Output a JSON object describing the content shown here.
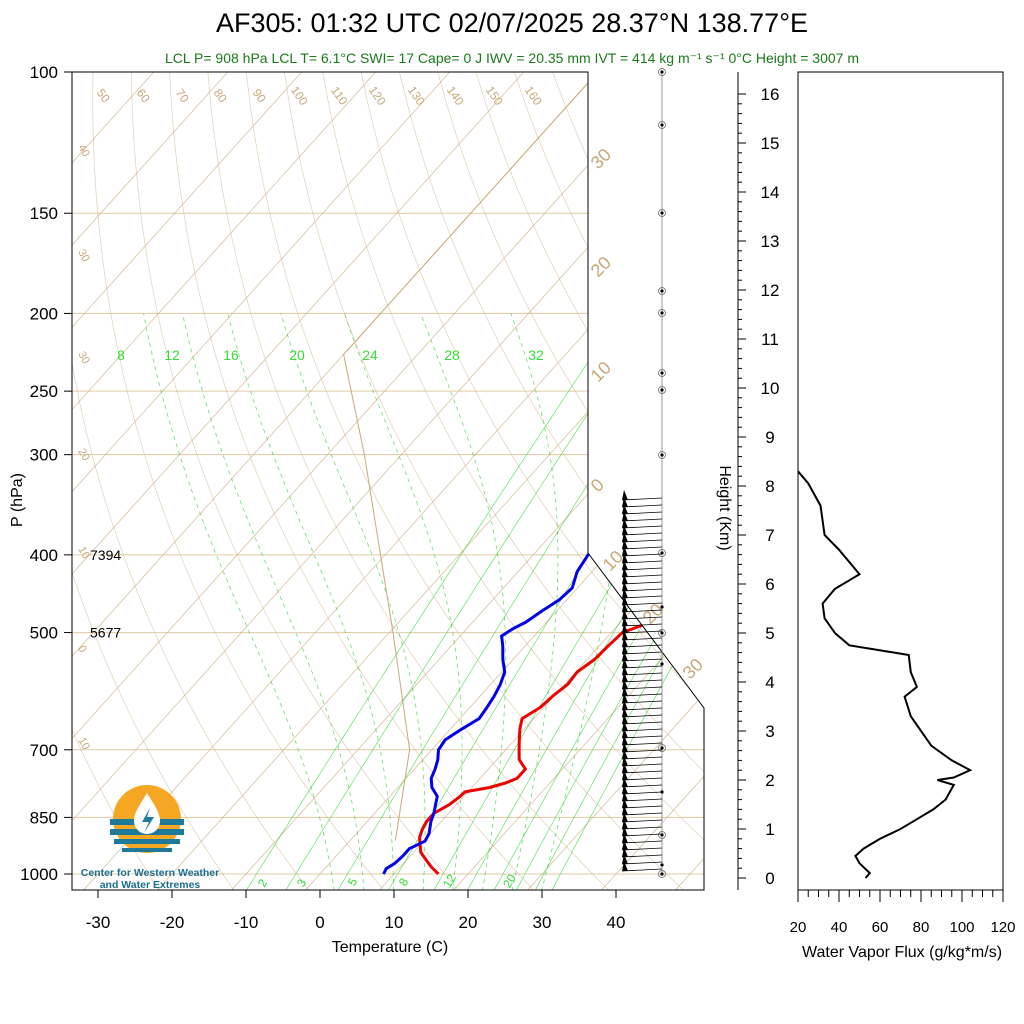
{
  "header": {
    "title": "AF305: 01:32 UTC 02/07/2025  28.37°N 138.77°E",
    "subtitle": "LCL P= 908 hPa  LCL T= 6.1°C  SWI= 17  Cape= 0 J  IWV = 20.35 mm  IVT = 414 kg m⁻¹ s⁻¹  0°C Height = 3007 m"
  },
  "logo": {
    "line1": "Center for Western Weather",
    "line2": "and Water Extremes",
    "colors": {
      "sun": "#f5a623",
      "water": "#1f7a99"
    }
  },
  "colors": {
    "temperature": "#ee0000",
    "dewpoint": "#0000ee",
    "isotherm": "#c8a878",
    "mixing_ratio": "#00cc00",
    "parcel": "#c8a878",
    "flux": "#000000",
    "subtitle": "#1a7a1a"
  },
  "chart_data": [
    {
      "type": "line",
      "subtype": "skew-T log-P sounding",
      "xlabel": "Temperature (C)",
      "ylabel": "P (hPa)",
      "x_ticks": [
        -30,
        -20,
        -10,
        0,
        10,
        20,
        30,
        40
      ],
      "y_ticks": [
        100,
        150,
        200,
        250,
        300,
        400,
        500,
        700,
        850,
        1000
      ],
      "y_scale": "log",
      "ylim": [
        1000,
        100
      ],
      "isotherm_labels": [
        -50,
        -40,
        -30,
        -20,
        -10,
        0,
        10,
        20,
        30
      ],
      "adiabat_labels": [
        50,
        60,
        70,
        80,
        90,
        100,
        110,
        120,
        130,
        140,
        150,
        160
      ],
      "mixing_ratio_labels_top": [
        8,
        12,
        16,
        20,
        24,
        28,
        32
      ],
      "mixing_ratio_labels_bottom": [
        2,
        3,
        5,
        8,
        12,
        20
      ],
      "height_annotations": [
        {
          "p": 400,
          "label": "7394"
        },
        {
          "p": 500,
          "label": "5677"
        }
      ],
      "series": [
        {
          "name": "temperature",
          "points": [
            [
              1000,
              16.0
            ],
            [
              980,
              14.2
            ],
            [
              960,
              12.6
            ],
            [
              940,
              11.0
            ],
            [
              920,
              10.0
            ],
            [
              900,
              9.0
            ],
            [
              880,
              8.4
            ],
            [
              860,
              8.0
            ],
            [
              840,
              8.0
            ],
            [
              820,
              9.0
            ],
            [
              800,
              9.5
            ],
            [
              790,
              9.6
            ],
            [
              780,
              12.4
            ],
            [
              770,
              14.0
            ],
            [
              760,
              15.0
            ],
            [
              740,
              15.0
            ],
            [
              720,
              13.0
            ],
            [
              700,
              11.8
            ],
            [
              680,
              10.6
            ],
            [
              660,
              9.4
            ],
            [
              640,
              8.4
            ],
            [
              620,
              9.5
            ],
            [
              600,
              9.8
            ],
            [
              580,
              10.4
            ],
            [
              560,
              10.2
            ],
            [
              540,
              11.0
            ],
            [
              520,
              11.2
            ],
            [
              500,
              11.5
            ],
            [
              490,
              13.2
            ],
            [
              480,
              14.0
            ],
            [
              470,
              14.8
            ],
            [
              460,
              17.0
            ],
            [
              450,
              18.0
            ],
            [
              440,
              17.0
            ],
            [
              420,
              17.0
            ],
            [
              400,
              16.0
            ],
            [
              380,
              14.5
            ],
            [
              360,
              13.6
            ],
            [
              350,
              14.0
            ],
            [
              340,
              13.5
            ]
          ]
        },
        {
          "name": "dewpoint",
          "points": [
            [
              1000,
              8.6
            ],
            [
              985,
              8.3
            ],
            [
              970,
              8.8
            ],
            [
              950,
              9.0
            ],
            [
              930,
              9.0
            ],
            [
              910,
              10.2
            ],
            [
              890,
              9.8
            ],
            [
              870,
              9.0
            ],
            [
              860,
              8.6
            ],
            [
              840,
              8.0
            ],
            [
              820,
              7.2
            ],
            [
              800,
              6.4
            ],
            [
              780,
              4.6
            ],
            [
              760,
              3.4
            ],
            [
              740,
              2.8
            ],
            [
              720,
              2.0
            ],
            [
              700,
              0.9
            ],
            [
              680,
              0.6
            ],
            [
              660,
              1.5
            ],
            [
              640,
              2.6
            ],
            [
              620,
              2.3
            ],
            [
              600,
              1.9
            ],
            [
              580,
              1.3
            ],
            [
              560,
              0.4
            ],
            [
              540,
              -1.4
            ],
            [
              520,
              -3.0
            ],
            [
              505,
              -4.4
            ],
            [
              495,
              -3.8
            ],
            [
              485,
              -2.8
            ],
            [
              470,
              -2.0
            ],
            [
              455,
              -1.0
            ],
            [
              440,
              -0.7
            ],
            [
              420,
              -2.0
            ],
            [
              400,
              -2.6
            ],
            [
              380,
              -2.8
            ],
            [
              370,
              -1.2
            ],
            [
              360,
              -1.4
            ],
            [
              350,
              -3.3
            ],
            [
              340,
              -4.5
            ]
          ]
        },
        {
          "name": "parcel",
          "points": [
            [
              908,
              6.1
            ],
            [
              700,
              -3.0
            ],
            [
              500,
              -19.5
            ],
            [
              300,
              -45.0
            ],
            [
              225,
              -60.0
            ],
            [
              100,
              -60.0
            ]
          ]
        }
      ]
    },
    {
      "type": "line",
      "subtype": "vertical profile",
      "xlabel": "Water Vapor Flux (g/kg*m/s)",
      "ylabel": "Height (Km)",
      "x_ticks": [
        20,
        40,
        60,
        80,
        100,
        120
      ],
      "y_ticks": [
        0,
        1,
        2,
        3,
        4,
        5,
        6,
        7,
        8,
        9,
        10,
        11,
        12,
        13,
        14,
        15,
        16
      ],
      "xlim": [
        20,
        120
      ],
      "ylim": [
        0,
        16.3
      ],
      "points": [
        [
          53,
          0.0
        ],
        [
          55,
          0.1
        ],
        [
          50,
          0.3
        ],
        [
          48,
          0.45
        ],
        [
          52,
          0.6
        ],
        [
          60,
          0.8
        ],
        [
          70,
          1.0
        ],
        [
          78,
          1.2
        ],
        [
          86,
          1.4
        ],
        [
          92,
          1.6
        ],
        [
          96,
          1.9
        ],
        [
          88,
          2.0
        ],
        [
          96,
          2.05
        ],
        [
          104,
          2.2
        ],
        [
          95,
          2.4
        ],
        [
          85,
          2.7
        ],
        [
          75,
          3.3
        ],
        [
          72,
          3.7
        ],
        [
          78,
          3.9
        ],
        [
          75,
          4.2
        ],
        [
          74,
          4.55
        ],
        [
          45,
          4.75
        ],
        [
          38,
          5.0
        ],
        [
          33,
          5.3
        ],
        [
          32,
          5.6
        ],
        [
          38,
          5.9
        ],
        [
          50,
          6.2
        ],
        [
          40,
          6.7
        ],
        [
          33,
          7.0
        ],
        [
          31,
          7.6
        ],
        [
          25,
          8.05
        ],
        [
          20,
          8.3
        ]
      ]
    }
  ]
}
